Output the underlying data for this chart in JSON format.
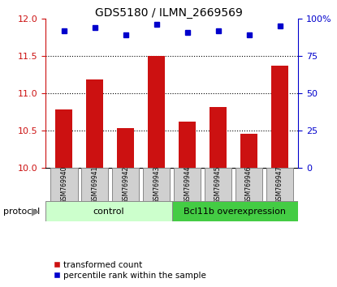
{
  "title": "GDS5180 / ILMN_2669569",
  "categories": [
    "GSM769940",
    "GSM769941",
    "GSM769942",
    "GSM769943",
    "GSM769944",
    "GSM769945",
    "GSM769946",
    "GSM769947"
  ],
  "red_values": [
    10.78,
    11.18,
    10.53,
    11.5,
    10.62,
    10.82,
    10.46,
    11.37
  ],
  "blue_values": [
    92,
    94,
    89,
    96,
    91,
    92,
    89,
    95
  ],
  "ylim_left": [
    10,
    12
  ],
  "ylim_right": [
    0,
    100
  ],
  "yticks_left": [
    10,
    10.5,
    11,
    11.5,
    12
  ],
  "yticks_right": [
    0,
    25,
    50,
    75,
    100
  ],
  "bar_color": "#cc1111",
  "dot_color": "#0000cc",
  "bar_width": 0.55,
  "control_label": "control",
  "overexp_label": "Bcl11b overexpression",
  "control_color": "#ccffcc",
  "overexp_color": "#44cc44",
  "protocol_label": "protocol",
  "legend_bar": "transformed count",
  "legend_dot": "percentile rank within the sample",
  "tick_bg": "#d0d0d0",
  "dotted_lines": [
    10.5,
    11.0,
    11.5
  ],
  "n_control": 4,
  "n_overexp": 4
}
